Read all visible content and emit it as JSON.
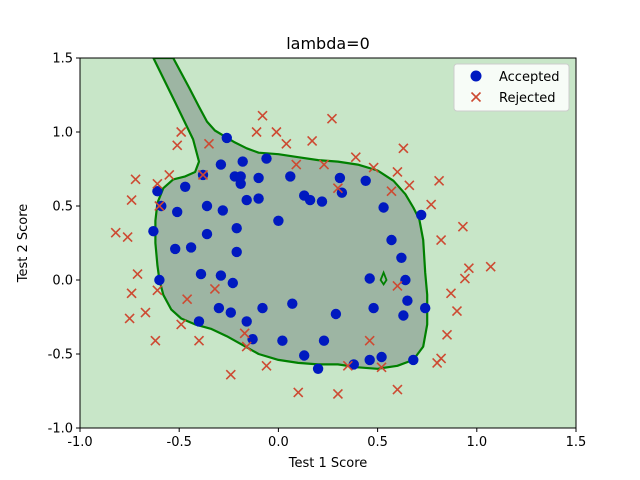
{
  "chart_data": {
    "type": "scatter",
    "title": "lambda=0",
    "xlabel": "Test 1 Score",
    "ylabel": "Test 2 Score",
    "xlim": [
      -1.0,
      1.5
    ],
    "ylim": [
      -1.0,
      1.5
    ],
    "xticks": [
      "-1.0",
      "-0.5",
      "0.0",
      "0.5",
      "1.0",
      "1.5"
    ],
    "yticks": [
      "-1.0",
      "-0.5",
      "0.0",
      "0.5",
      "1.0",
      "1.5"
    ],
    "xtick_values": [
      -1.0,
      -0.5,
      0.0,
      0.5,
      1.0,
      1.5
    ],
    "ytick_values": [
      -1.0,
      -0.5,
      0.0,
      0.5,
      1.0,
      1.5
    ],
    "grid": false,
    "legend_position": "top-right",
    "background_color": "#c8e6c8",
    "region_color": "#9db5a3",
    "boundary_color": "#008000",
    "accepted_color": "#0019c0",
    "rejected_color": "#cd4a32",
    "decision_boundary": [
      [
        -0.53,
        1.5
      ],
      [
        -0.45,
        1.3
      ],
      [
        -0.4,
        1.17
      ],
      [
        -0.36,
        1.07
      ],
      [
        -0.32,
        1.01
      ],
      [
        -0.27,
        0.97
      ],
      [
        -0.22,
        0.93
      ],
      [
        -0.16,
        0.89
      ],
      [
        -0.1,
        0.86
      ],
      [
        0.0,
        0.85
      ],
      [
        0.1,
        0.83
      ],
      [
        0.2,
        0.81
      ],
      [
        0.3,
        0.8
      ],
      [
        0.4,
        0.78
      ],
      [
        0.5,
        0.74
      ],
      [
        0.58,
        0.67
      ],
      [
        0.64,
        0.58
      ],
      [
        0.68,
        0.49
      ],
      [
        0.71,
        0.41
      ],
      [
        0.73,
        0.27
      ],
      [
        0.74,
        0.05
      ],
      [
        0.75,
        -0.1
      ],
      [
        0.75,
        -0.3
      ],
      [
        0.73,
        -0.45
      ],
      [
        0.68,
        -0.54
      ],
      [
        0.6,
        -0.58
      ],
      [
        0.5,
        -0.6
      ],
      [
        0.4,
        -0.59
      ],
      [
        0.3,
        -0.57
      ],
      [
        0.2,
        -0.57
      ],
      [
        0.1,
        -0.56
      ],
      [
        0.0,
        -0.54
      ],
      [
        -0.1,
        -0.5
      ],
      [
        -0.18,
        -0.44
      ],
      [
        -0.26,
        -0.38
      ],
      [
        -0.34,
        -0.33
      ],
      [
        -0.42,
        -0.3
      ],
      [
        -0.49,
        -0.26
      ],
      [
        -0.54,
        -0.2
      ],
      [
        -0.58,
        -0.1
      ],
      [
        -0.6,
        0.0
      ],
      [
        -0.61,
        0.1
      ],
      [
        -0.62,
        0.25
      ],
      [
        -0.62,
        0.4
      ],
      [
        -0.61,
        0.52
      ],
      [
        -0.58,
        0.62
      ],
      [
        -0.53,
        0.68
      ],
      [
        -0.47,
        0.7
      ],
      [
        -0.42,
        0.73
      ],
      [
        -0.4,
        0.8
      ],
      [
        -0.43,
        0.95
      ],
      [
        -0.52,
        1.2
      ],
      [
        -0.63,
        1.5
      ]
    ],
    "small_island": [
      [
        0.53,
        0.05
      ],
      [
        0.545,
        0.0
      ],
      [
        0.53,
        -0.03
      ],
      [
        0.515,
        0.0
      ],
      [
        0.53,
        0.05
      ]
    ],
    "series": [
      {
        "name": "Accepted",
        "marker": "o",
        "points": [
          [
            -0.61,
            0.6
          ],
          [
            -0.47,
            0.63
          ],
          [
            -0.38,
            0.71
          ],
          [
            -0.26,
            0.96
          ],
          [
            -0.29,
            0.78
          ],
          [
            -0.22,
            0.7
          ],
          [
            -0.19,
            0.7
          ],
          [
            -0.19,
            0.65
          ],
          [
            -0.18,
            0.8
          ],
          [
            -0.1,
            0.69
          ],
          [
            -0.06,
            0.82
          ],
          [
            0.06,
            0.7
          ],
          [
            0.13,
            0.57
          ],
          [
            0.16,
            0.54
          ],
          [
            0.22,
            0.53
          ],
          [
            0.31,
            0.69
          ],
          [
            0.32,
            0.59
          ],
          [
            0.44,
            0.67
          ],
          [
            0.53,
            0.49
          ],
          [
            0.57,
            0.27
          ],
          [
            0.62,
            0.15
          ],
          [
            0.72,
            0.44
          ],
          [
            -0.59,
            0.5
          ],
          [
            -0.51,
            0.46
          ],
          [
            -0.36,
            0.5
          ],
          [
            -0.28,
            0.47
          ],
          [
            -0.21,
            0.35
          ],
          [
            -0.16,
            0.54
          ],
          [
            -0.1,
            0.55
          ],
          [
            0.0,
            0.4
          ],
          [
            -0.63,
            0.33
          ],
          [
            -0.52,
            0.21
          ],
          [
            -0.44,
            0.22
          ],
          [
            -0.36,
            0.31
          ],
          [
            -0.21,
            0.19
          ],
          [
            -0.6,
            0.0
          ],
          [
            -0.39,
            0.04
          ],
          [
            -0.29,
            0.03
          ],
          [
            -0.23,
            -0.02
          ],
          [
            -0.3,
            -0.19
          ],
          [
            -0.24,
            -0.22
          ],
          [
            -0.16,
            -0.28
          ],
          [
            -0.08,
            -0.19
          ],
          [
            0.07,
            -0.16
          ],
          [
            0.29,
            -0.23
          ],
          [
            -0.4,
            -0.28
          ],
          [
            -0.13,
            -0.4
          ],
          [
            0.02,
            -0.41
          ],
          [
            0.23,
            -0.41
          ],
          [
            0.13,
            -0.51
          ],
          [
            0.2,
            -0.6
          ],
          [
            0.38,
            -0.57
          ],
          [
            0.46,
            -0.54
          ],
          [
            0.52,
            -0.52
          ],
          [
            0.68,
            -0.54
          ],
          [
            0.46,
            0.01
          ],
          [
            0.64,
            0.0
          ],
          [
            0.48,
            -0.19
          ],
          [
            0.65,
            -0.14
          ],
          [
            0.63,
            -0.24
          ],
          [
            0.74,
            -0.19
          ]
        ]
      },
      {
        "name": "Rejected",
        "marker": "x",
        "points": [
          [
            -0.82,
            0.32
          ],
          [
            -0.76,
            0.29
          ],
          [
            -0.74,
            0.54
          ],
          [
            -0.72,
            0.68
          ],
          [
            -0.61,
            0.65
          ],
          [
            -0.55,
            0.71
          ],
          [
            -0.51,
            0.91
          ],
          [
            -0.49,
            1.0
          ],
          [
            -0.38,
            0.71
          ],
          [
            -0.35,
            0.92
          ],
          [
            -0.11,
            1.0
          ],
          [
            -0.08,
            1.11
          ],
          [
            -0.01,
            1.0
          ],
          [
            0.04,
            0.92
          ],
          [
            0.09,
            0.78
          ],
          [
            0.17,
            0.94
          ],
          [
            0.23,
            0.78
          ],
          [
            0.27,
            1.09
          ],
          [
            0.39,
            0.83
          ],
          [
            0.48,
            0.76
          ],
          [
            0.57,
            0.6
          ],
          [
            0.6,
            0.73
          ],
          [
            0.66,
            0.64
          ],
          [
            0.63,
            0.89
          ],
          [
            0.77,
            0.51
          ],
          [
            0.81,
            0.67
          ],
          [
            0.82,
            0.27
          ],
          [
            0.93,
            0.36
          ],
          [
            0.96,
            0.08
          ],
          [
            0.94,
            0.01
          ],
          [
            1.07,
            0.09
          ],
          [
            0.87,
            -0.09
          ],
          [
            0.9,
            -0.21
          ],
          [
            0.85,
            -0.37
          ],
          [
            0.82,
            -0.53
          ],
          [
            0.8,
            -0.56
          ],
          [
            0.6,
            -0.74
          ],
          [
            0.52,
            -0.59
          ],
          [
            0.46,
            -0.41
          ],
          [
            0.35,
            -0.58
          ],
          [
            0.3,
            -0.77
          ],
          [
            0.1,
            -0.76
          ],
          [
            -0.06,
            -0.58
          ],
          [
            -0.16,
            -0.45
          ],
          [
            -0.17,
            -0.36
          ],
          [
            -0.24,
            -0.64
          ],
          [
            -0.4,
            -0.41
          ],
          [
            -0.49,
            -0.3
          ],
          [
            -0.46,
            -0.13
          ],
          [
            -0.62,
            -0.41
          ],
          [
            -0.67,
            -0.22
          ],
          [
            -0.75,
            -0.26
          ],
          [
            -0.74,
            -0.09
          ],
          [
            -0.71,
            0.04
          ],
          [
            -0.61,
            -0.07
          ],
          [
            -0.6,
            0.5
          ],
          [
            0.3,
            0.62
          ],
          [
            0.6,
            -0.04
          ],
          [
            -0.32,
            -0.06
          ]
        ]
      }
    ]
  }
}
